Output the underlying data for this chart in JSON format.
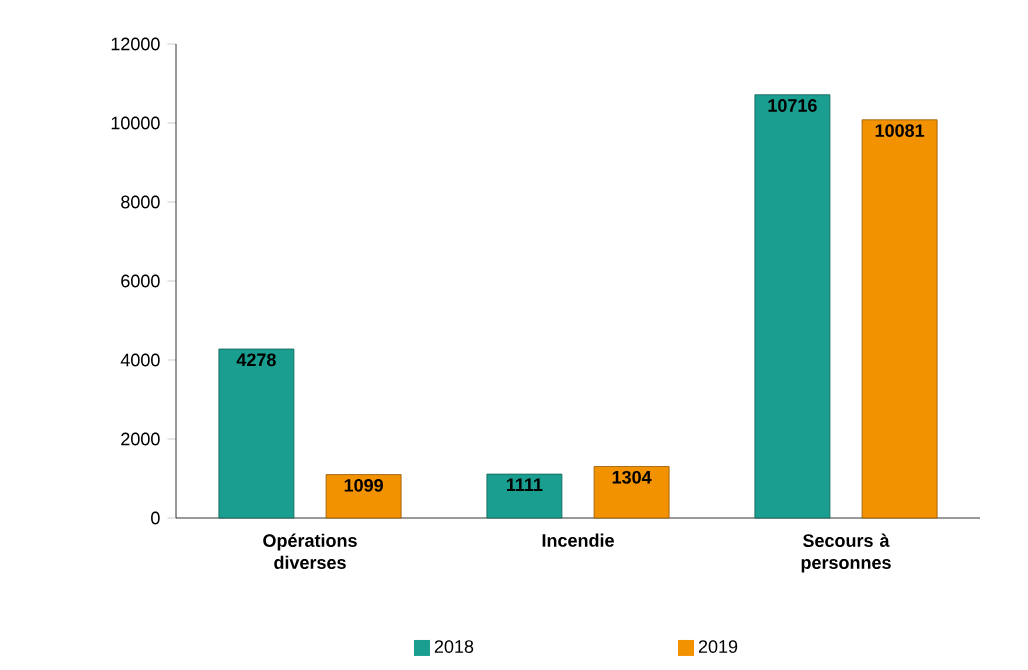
{
  "chart_data": {
    "type": "bar",
    "categories": [
      "Opérations diverses",
      "Incendie",
      "Secours à personnes"
    ],
    "series": [
      {
        "name": "2018",
        "color": "#1a9e8f",
        "values": [
          4278,
          1111,
          10716
        ]
      },
      {
        "name": "2019",
        "color": "#f39200",
        "values": [
          1099,
          1304,
          10081
        ]
      }
    ],
    "ylim": [
      0,
      12000
    ],
    "yticks": [
      0,
      2000,
      4000,
      6000,
      8000,
      10000,
      12000
    ],
    "data_labels": true,
    "legend": "bottom",
    "grid": false
  }
}
